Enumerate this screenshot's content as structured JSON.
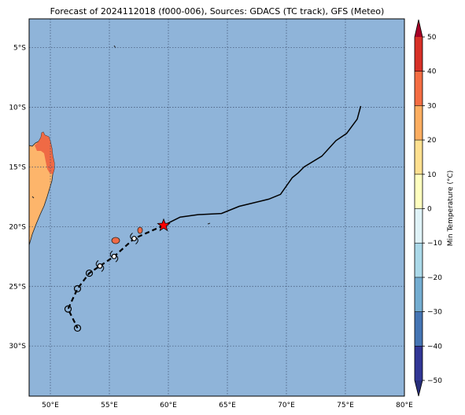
{
  "title": "Forecast of 2024112018 (f000-006), Sources: GDACS (TC track), GFS (Meteo)",
  "colorbar_label": "Min Temperature (°C)",
  "colors": {
    "ocean": "#8fb4d9",
    "land_warm": "#fdb56b",
    "land_hot": "#ef6a45",
    "track": "#000000",
    "current_position": "#ff0000"
  },
  "chart_data": {
    "type": "map",
    "projection": "plate-carree",
    "lon_range": [
      48.2,
      80
    ],
    "lat_range": [
      -34.2,
      -2.6
    ],
    "grid": true,
    "lon_ticks": [
      50,
      55,
      60,
      65,
      70,
      75,
      80
    ],
    "lon_tick_labels": [
      "50°E",
      "55°E",
      "60°E",
      "65°E",
      "70°E",
      "75°E",
      "80°E"
    ],
    "lat_ticks": [
      -5,
      -10,
      -15,
      -20,
      -25,
      -30
    ],
    "lat_tick_labels": [
      "5°S",
      "10°S",
      "15°S",
      "20°S",
      "25°S",
      "30°S"
    ],
    "colorbar": {
      "levels": [
        -50,
        -40,
        -30,
        -20,
        -10,
        0,
        10,
        20,
        30,
        40,
        50
      ],
      "tick_labels": [
        "−50",
        "−40",
        "−30",
        "−20",
        "−10",
        "0",
        "10",
        "20",
        "30",
        "40",
        "50"
      ],
      "band_colors": [
        "#313695",
        "#4575b4",
        "#74add1",
        "#abd9e9",
        "#e0f3f8",
        "#ffffbf",
        "#fee090",
        "#fdae61",
        "#f46d43",
        "#d73027"
      ],
      "under_color": "#282e7a",
      "over_color": "#a50026",
      "extend": "both"
    },
    "observed_track": [
      {
        "lon": 76.3,
        "lat": -9.9
      },
      {
        "lon": 76.0,
        "lat": -11.0
      },
      {
        "lon": 75.1,
        "lat": -12.2
      },
      {
        "lon": 74.2,
        "lat": -12.8
      },
      {
        "lon": 73.0,
        "lat": -14.1
      },
      {
        "lon": 71.5,
        "lat": -15.0
      },
      {
        "lon": 71.0,
        "lat": -15.5
      },
      {
        "lon": 70.5,
        "lat": -15.9
      },
      {
        "lon": 69.5,
        "lat": -17.3
      },
      {
        "lon": 68.5,
        "lat": -17.7
      },
      {
        "lon": 66.0,
        "lat": -18.3
      },
      {
        "lon": 64.5,
        "lat": -18.9
      },
      {
        "lon": 62.5,
        "lat": -19.0
      },
      {
        "lon": 61.0,
        "lat": -19.2
      },
      {
        "lon": 60.2,
        "lat": -19.6
      },
      {
        "lon": 59.6,
        "lat": -19.9
      }
    ],
    "current_position": {
      "lon": 59.6,
      "lat": -19.9
    },
    "forecast_track": [
      {
        "lon": 59.6,
        "lat": -19.9
      },
      {
        "lon": 57.1,
        "lat": -21.0
      },
      {
        "lon": 55.4,
        "lat": -22.5
      },
      {
        "lon": 54.2,
        "lat": -23.3
      },
      {
        "lon": 53.3,
        "lat": -23.9
      },
      {
        "lon": 52.3,
        "lat": -25.2
      },
      {
        "lon": 51.5,
        "lat": -26.9
      },
      {
        "lon": 52.3,
        "lat": -28.5
      }
    ],
    "forecast_markers": [
      {
        "lon": 57.1,
        "lat": -21.0,
        "symbol": "cyclone"
      },
      {
        "lon": 55.4,
        "lat": -22.5,
        "symbol": "cyclone"
      },
      {
        "lon": 54.2,
        "lat": -23.3,
        "symbol": "cyclone"
      },
      {
        "lon": 53.3,
        "lat": -23.9,
        "symbol": "circle"
      },
      {
        "lon": 52.3,
        "lat": -25.2,
        "symbol": "circle"
      },
      {
        "lon": 51.5,
        "lat": -26.9,
        "symbol": "circle"
      },
      {
        "lon": 52.3,
        "lat": -28.5,
        "symbol": "circle"
      }
    ],
    "land_min_temperature_c": [
      {
        "region": "Madagascar",
        "band": "10-20",
        "hot_band": "20-30"
      },
      {
        "region": "Reunion",
        "band": "20-30"
      },
      {
        "region": "Mauritius",
        "band": "20-30"
      }
    ]
  }
}
